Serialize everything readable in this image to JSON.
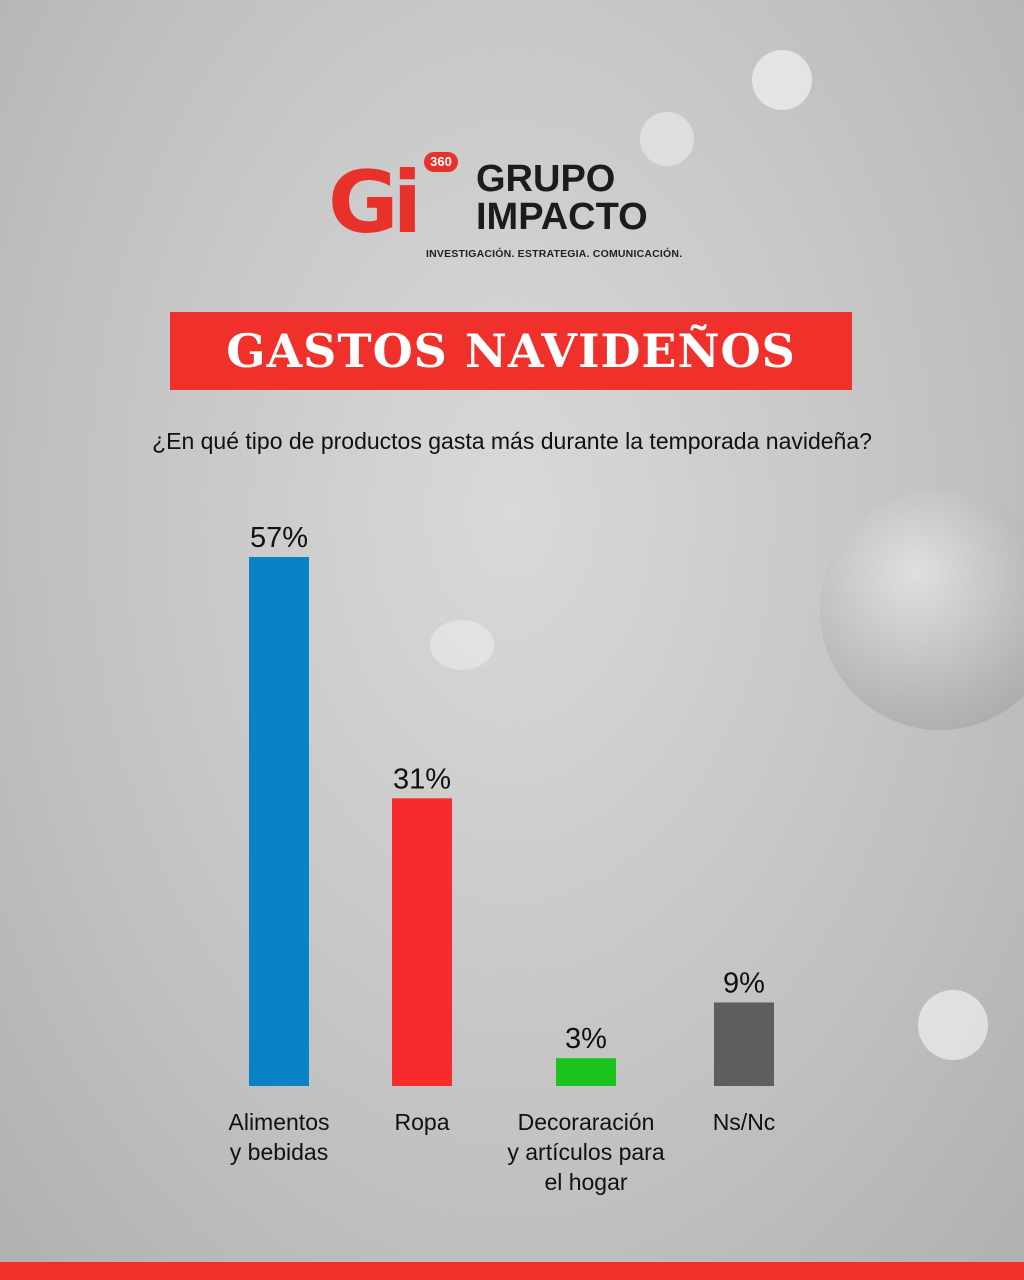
{
  "logo": {
    "mark": "Gi",
    "badge": "360",
    "name_line1": "GRUPO",
    "name_line2": "IMPACTO",
    "tagline": "INVESTIGACIÓN. ESTRATEGIA. COMUNICACIÓN."
  },
  "title": "GASTOS NAVIDEÑOS",
  "question": "¿En qué tipo de productos gasta más durante la temporada navideña?",
  "chart_data": {
    "type": "bar",
    "categories": [
      [
        "Alimentos",
        "y bebidas"
      ],
      [
        "Ropa"
      ],
      [
        "Decoraración",
        "y artículos para",
        "el hogar"
      ],
      [
        "Ns/Nc"
      ]
    ],
    "values": [
      57,
      31,
      3,
      9
    ],
    "value_labels": [
      "57%",
      "31%",
      "3%",
      "9%"
    ],
    "colors": [
      "#0a82c7",
      "#f72b2b",
      "#1cc31c",
      "#5e5e5e"
    ],
    "ylim": [
      0,
      57
    ],
    "grid": false
  }
}
